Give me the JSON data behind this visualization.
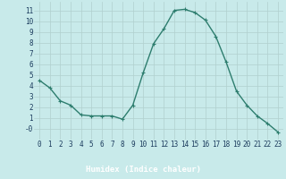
{
  "x": [
    0,
    1,
    2,
    3,
    4,
    5,
    6,
    7,
    8,
    9,
    10,
    11,
    12,
    13,
    14,
    15,
    16,
    17,
    18,
    19,
    20,
    21,
    22,
    23
  ],
  "y": [
    4.5,
    3.8,
    2.6,
    2.2,
    1.3,
    1.2,
    1.2,
    1.2,
    0.9,
    2.2,
    5.2,
    7.9,
    9.3,
    11.0,
    11.1,
    10.8,
    10.1,
    8.6,
    6.2,
    3.5,
    2.2,
    1.2,
    0.5,
    -0.3
  ],
  "line_color": "#2d7d6e",
  "marker": "+",
  "marker_size": 3,
  "bg_color": "#c8eaea",
  "grid_color": "#b0d0ce",
  "xlabel": "Humidex (Indice chaleur)",
  "xlim": [
    -0.5,
    23.5
  ],
  "ylim": [
    -1.0,
    11.8
  ],
  "yticks": [
    0,
    1,
    2,
    3,
    4,
    5,
    6,
    7,
    8,
    9,
    10,
    11
  ],
  "ytick_labels": [
    "-0",
    "1",
    "2",
    "3",
    "4",
    "5",
    "6",
    "7",
    "8",
    "9",
    "10",
    "11"
  ],
  "xticks": [
    0,
    1,
    2,
    3,
    4,
    5,
    6,
    7,
    8,
    9,
    10,
    11,
    12,
    13,
    14,
    15,
    16,
    17,
    18,
    19,
    20,
    21,
    22,
    23
  ],
  "xlabel_fontsize": 6.5,
  "tick_fontsize": 5.5,
  "line_width": 1.0,
  "xlabel_bg": "#3a7a7a",
  "xlabel_color": "#ffffff",
  "tick_color": "#1a3a5c"
}
